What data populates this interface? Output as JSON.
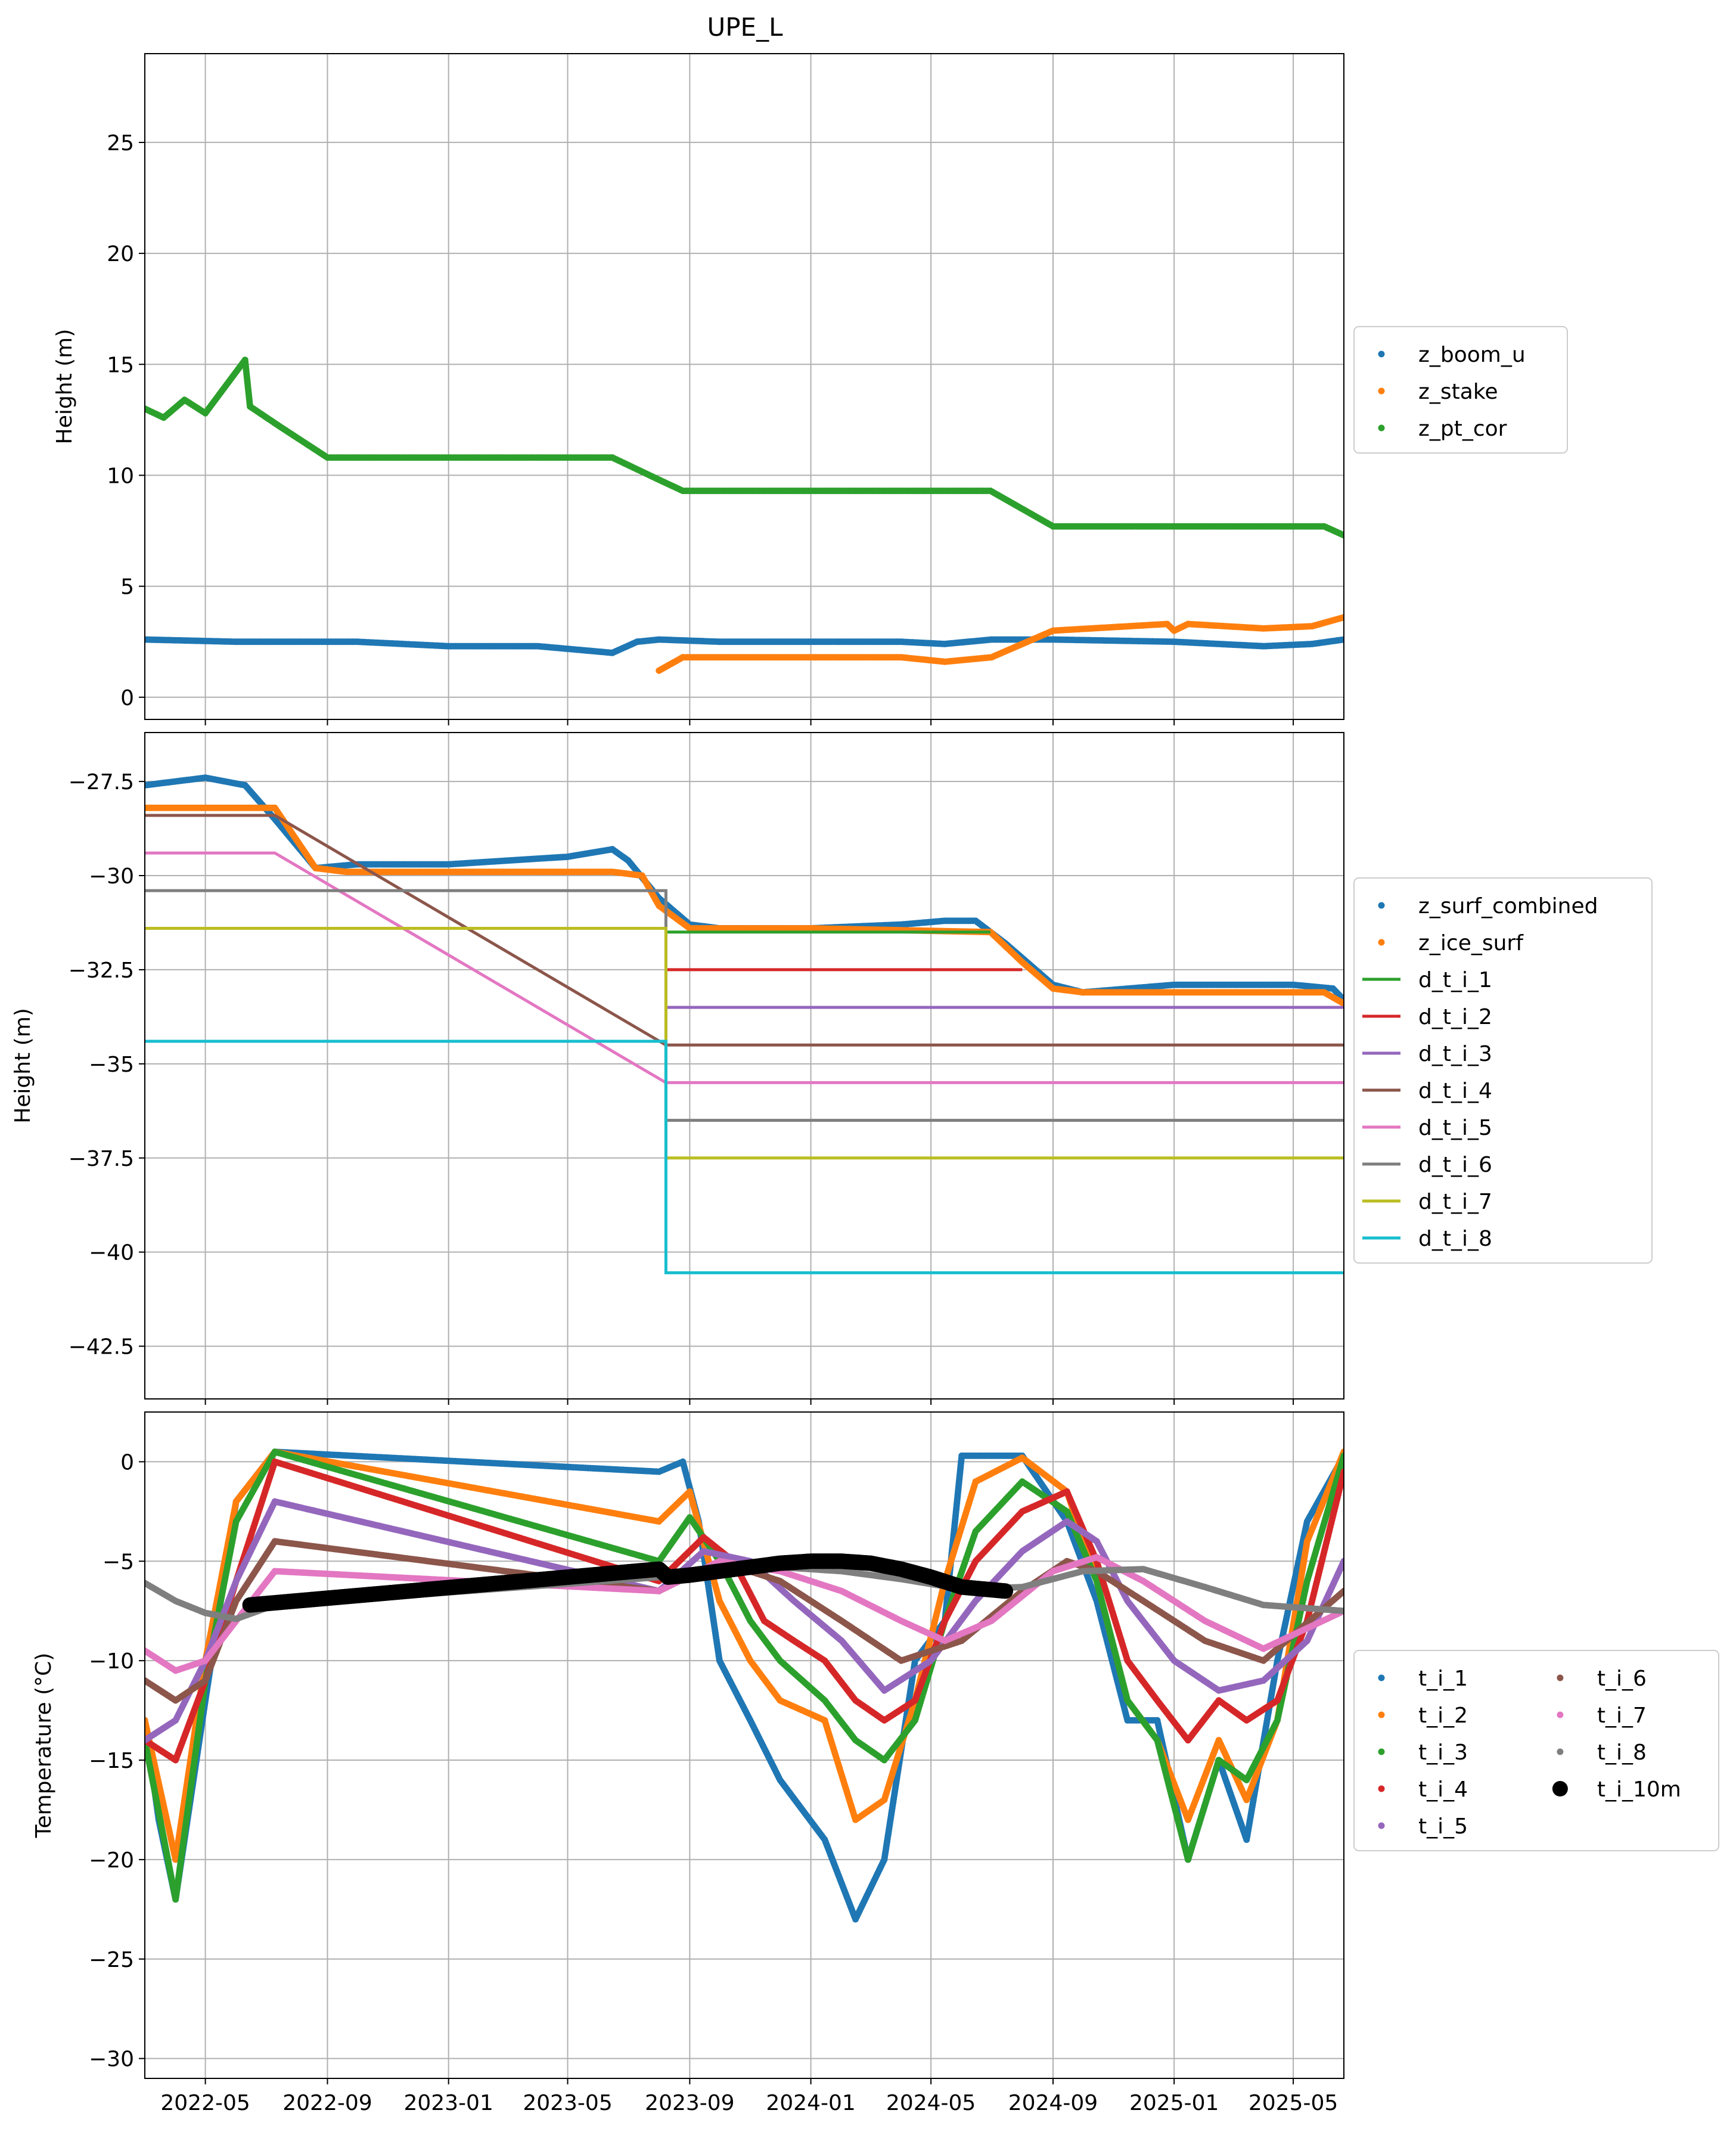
{
  "figure": {
    "title": "UPE_L",
    "x_ticks": [
      "2022-05",
      "2022-09",
      "2023-01",
      "2023-05",
      "2023-09",
      "2024-01",
      "2024-05",
      "2024-09",
      "2025-01",
      "2025-05"
    ],
    "x_range": [
      "2022-03-01",
      "2025-06-21"
    ]
  },
  "chart_data": [
    {
      "type": "scatter",
      "title": "UPE_L",
      "xlabel": "",
      "ylabel": "Height (m)",
      "ylim": [
        -1,
        29
      ],
      "yticks": [
        0,
        5,
        10,
        15,
        20,
        25
      ],
      "grid": true,
      "legend_position": "right, outside",
      "series": [
        {
          "name": "z_boom_u",
          "color": "#1f77b4",
          "x": [
            "2022-03-01",
            "2022-06-01",
            "2022-10-01",
            "2023-01-01",
            "2023-04-01",
            "2023-06-15",
            "2023-07-10",
            "2023-08-01",
            "2023-10-01",
            "2024-01-01",
            "2024-04-01",
            "2024-05-15",
            "2024-07-01",
            "2024-09-01",
            "2025-01-01",
            "2025-04-01",
            "2025-05-20",
            "2025-06-21"
          ],
          "y": [
            2.6,
            2.5,
            2.5,
            2.3,
            2.3,
            2.0,
            2.5,
            2.6,
            2.5,
            2.5,
            2.5,
            2.4,
            2.6,
            2.6,
            2.5,
            2.3,
            2.4,
            2.6
          ]
        },
        {
          "name": "z_stake",
          "color": "#ff7f0e",
          "x": [
            "2023-08-01",
            "2023-08-25",
            "2023-10-01",
            "2024-01-01",
            "2024-04-01",
            "2024-05-15",
            "2024-07-01",
            "2024-09-01",
            "2024-12-25",
            "2025-01-01",
            "2025-01-15",
            "2025-04-01",
            "2025-05-20",
            "2025-06-21"
          ],
          "y": [
            1.2,
            1.8,
            1.8,
            1.8,
            1.8,
            1.6,
            1.8,
            3.0,
            3.3,
            3.0,
            3.3,
            3.1,
            3.2,
            3.6
          ]
        },
        {
          "name": "z_pt_cor",
          "color": "#2ca02c",
          "x": [
            "2022-03-01",
            "2022-03-20",
            "2022-04-10",
            "2022-05-01",
            "2022-06-10",
            "2022-06-15",
            "2022-07-15",
            "2022-09-01",
            "2022-10-15",
            "2023-01-01",
            "2023-05-01",
            "2023-06-15",
            "2023-08-01",
            "2023-08-25",
            "2023-10-01",
            "2024-01-01",
            "2024-06-30",
            "2024-09-01",
            "2024-10-01",
            "2025-01-01",
            "2025-06-01",
            "2025-06-21"
          ],
          "y": [
            13.0,
            12.6,
            13.4,
            12.8,
            15.2,
            13.1,
            12.2,
            10.8,
            10.8,
            10.8,
            10.8,
            10.8,
            9.8,
            9.3,
            9.3,
            9.3,
            9.3,
            7.7,
            7.7,
            7.7,
            7.7,
            7.3
          ]
        }
      ]
    },
    {
      "type": "line",
      "title": "",
      "xlabel": "",
      "ylabel": "Height (m)",
      "ylim": [
        -43.9,
        -26.2
      ],
      "yticks": [
        -27.5,
        -30.0,
        -32.5,
        -35.0,
        -37.5,
        -40.0,
        -42.5
      ],
      "grid": true,
      "legend_position": "right, outside",
      "series": [
        {
          "name": "z_surf_combined",
          "mode": "points",
          "color": "#1f77b4",
          "x": [
            "2022-03-01",
            "2022-05-01",
            "2022-06-10",
            "2022-07-10",
            "2022-08-20",
            "2022-10-01",
            "2023-01-01",
            "2023-05-01",
            "2023-06-15",
            "2023-07-01",
            "2023-08-01",
            "2023-09-01",
            "2023-10-01",
            "2024-01-01",
            "2024-04-01",
            "2024-05-15",
            "2024-06-15",
            "2024-07-15",
            "2024-09-01",
            "2024-10-01",
            "2025-01-01",
            "2025-05-01",
            "2025-06-10",
            "2025-06-21"
          ],
          "y": [
            -27.6,
            -27.4,
            -27.6,
            -28.5,
            -29.8,
            -29.7,
            -29.7,
            -29.5,
            -29.3,
            -29.6,
            -30.6,
            -31.3,
            -31.4,
            -31.4,
            -31.3,
            -31.2,
            -31.2,
            -31.8,
            -32.9,
            -33.1,
            -32.9,
            -32.9,
            -33.0,
            -33.3
          ]
        },
        {
          "name": "z_ice_surf",
          "mode": "points",
          "color": "#ff7f0e",
          "x": [
            "2022-03-01",
            "2022-07-10",
            "2022-08-20",
            "2022-09-20",
            "2023-01-01",
            "2023-06-15",
            "2023-07-15",
            "2023-08-01",
            "2023-09-01",
            "2024-01-01",
            "2024-06-30",
            "2024-08-01",
            "2024-09-01",
            "2024-10-01",
            "2025-01-01",
            "2025-06-01",
            "2025-06-21"
          ],
          "y": [
            -28.2,
            -28.2,
            -29.8,
            -29.9,
            -29.9,
            -29.9,
            -30.0,
            -30.8,
            -31.4,
            -31.4,
            -31.5,
            -32.3,
            -33.0,
            -33.1,
            -33.1,
            -33.1,
            -33.4
          ]
        },
        {
          "name": "d_t_i_1",
          "mode": "line",
          "color": "#2ca02c",
          "x": [
            "2023-08-08",
            "2024-06-30"
          ],
          "y": [
            -31.5,
            -31.5
          ]
        },
        {
          "name": "d_t_i_2",
          "mode": "line",
          "color": "#d62728",
          "x": [
            "2023-08-08",
            "2024-08-01"
          ],
          "y": [
            -32.5,
            -32.5
          ]
        },
        {
          "name": "d_t_i_3",
          "mode": "line",
          "color": "#9467bd",
          "x": [
            "2023-08-08",
            "2025-06-21"
          ],
          "y": [
            -33.5,
            -33.5
          ]
        },
        {
          "name": "d_t_i_4",
          "mode": "line",
          "color": "#8c564b",
          "x": [
            "2022-03-01",
            "2022-07-10",
            "2023-08-08",
            "2025-06-21"
          ],
          "y": [
            -28.4,
            -28.4,
            -34.5,
            -34.5
          ]
        },
        {
          "name": "d_t_i_5",
          "mode": "line",
          "color": "#e377c2",
          "x": [
            "2022-03-01",
            "2022-07-10",
            "2023-08-08",
            "2025-06-21"
          ],
          "y": [
            -29.4,
            -29.4,
            -35.5,
            -35.5
          ]
        },
        {
          "name": "d_t_i_6",
          "mode": "line",
          "color": "#7f7f7f",
          "x": [
            "2022-03-01",
            "2023-08-08",
            "2023-08-08",
            "2025-06-21"
          ],
          "y": [
            -30.4,
            -30.4,
            -36.5,
            -36.5
          ]
        },
        {
          "name": "d_t_i_7",
          "mode": "line",
          "color": "#bcbd22",
          "x": [
            "2022-03-01",
            "2023-08-08",
            "2023-08-08",
            "2025-06-21"
          ],
          "y": [
            -31.4,
            -31.4,
            -37.5,
            -37.5
          ]
        },
        {
          "name": "d_t_i_8",
          "mode": "line",
          "color": "#17becf",
          "x": [
            "2022-03-01",
            "2023-08-08",
            "2023-08-08",
            "2025-06-21"
          ],
          "y": [
            -34.4,
            -34.4,
            -40.55,
            -40.55
          ]
        }
      ]
    },
    {
      "type": "scatter",
      "title": "",
      "xlabel": "",
      "ylabel": "Temperature (°C)",
      "ylim": [
        -31,
        2.5
      ],
      "yticks": [
        0,
        -5,
        -10,
        -15,
        -20,
        -25,
        -30
      ],
      "grid": true,
      "legend_position": "right, outside, two columns",
      "series": [
        {
          "name": "t_i_1",
          "color": "#1f77b4",
          "x": [
            "2022-03-01",
            "2022-03-15",
            "2022-04-01",
            "2022-05-01",
            "2022-06-01",
            "2022-07-10",
            "2023-08-01",
            "2023-08-25",
            "2023-09-10",
            "2023-10-01",
            "2023-11-01",
            "2023-12-01",
            "2024-01-15",
            "2024-02-15",
            "2024-03-15",
            "2024-04-15",
            "2024-05-15",
            "2024-06-01",
            "2024-08-01",
            "2024-09-15",
            "2024-10-15",
            "2024-11-15",
            "2024-12-15",
            "2025-01-15",
            "2025-02-15",
            "2025-03-15",
            "2025-04-15",
            "2025-05-15",
            "2025-06-21"
          ],
          "y": [
            -13,
            -18,
            -22,
            -12,
            -2,
            0.5,
            -0.5,
            0,
            -3,
            -10,
            -13,
            -16,
            -19,
            -23,
            -20,
            -10,
            -8,
            0.3,
            0.3,
            -3,
            -7,
            -13,
            -13,
            -20,
            -15,
            -19,
            -10,
            -3,
            0.3
          ]
        },
        {
          "name": "t_i_2",
          "color": "#ff7f0e",
          "x": [
            "2022-03-01",
            "2022-04-01",
            "2022-05-01",
            "2022-06-01",
            "2022-07-10",
            "2023-08-01",
            "2023-09-01",
            "2023-10-01",
            "2023-11-01",
            "2023-12-01",
            "2024-01-15",
            "2024-02-15",
            "2024-03-15",
            "2024-04-15",
            "2024-05-15",
            "2024-06-15",
            "2024-08-01",
            "2024-09-15",
            "2024-10-15",
            "2024-11-15",
            "2024-12-15",
            "2025-01-15",
            "2025-02-15",
            "2025-03-15",
            "2025-04-15",
            "2025-05-15",
            "2025-06-21"
          ],
          "y": [
            -13,
            -20,
            -10,
            -2,
            0.5,
            -3,
            -1.5,
            -7,
            -10,
            -12,
            -13,
            -18,
            -17,
            -12,
            -6,
            -1,
            0.2,
            -1.5,
            -6,
            -12,
            -14,
            -18,
            -14,
            -17,
            -13,
            -4,
            0.5
          ]
        },
        {
          "name": "t_i_3",
          "color": "#2ca02c",
          "x": [
            "2022-03-01",
            "2022-04-01",
            "2022-05-01",
            "2022-06-01",
            "2022-07-10",
            "2023-08-01",
            "2023-09-01",
            "2023-10-01",
            "2023-11-01",
            "2023-12-01",
            "2024-01-15",
            "2024-02-15",
            "2024-03-15",
            "2024-04-15",
            "2024-05-15",
            "2024-06-15",
            "2024-08-01",
            "2024-09-15",
            "2024-10-15",
            "2024-11-15",
            "2024-12-15",
            "2025-01-15",
            "2025-02-15",
            "2025-03-15",
            "2025-04-15",
            "2025-05-15",
            "2025-06-21"
          ],
          "y": [
            -14,
            -22,
            -11,
            -3,
            0.5,
            -5,
            -2.8,
            -5,
            -8,
            -10,
            -12,
            -14,
            -15,
            -13,
            -8,
            -3.5,
            -1,
            -2.5,
            -6,
            -12,
            -14,
            -20,
            -15,
            -16,
            -13,
            -6,
            0.3
          ]
        },
        {
          "name": "t_i_4",
          "color": "#d62728",
          "x": [
            "2022-03-01",
            "2022-04-01",
            "2022-05-01",
            "2022-06-01",
            "2022-07-10",
            "2023-08-01",
            "2023-09-15",
            "2023-10-15",
            "2023-11-15",
            "2023-12-15",
            "2024-01-15",
            "2024-02-15",
            "2024-03-15",
            "2024-04-15",
            "2024-05-15",
            "2024-06-15",
            "2024-08-01",
            "2024-09-15",
            "2024-10-15",
            "2024-11-15",
            "2024-12-15",
            "2025-01-15",
            "2025-02-15",
            "2025-03-15",
            "2025-04-15",
            "2025-05-15",
            "2025-06-21"
          ],
          "y": [
            -14,
            -15,
            -11,
            -6,
            0,
            -6,
            -3.8,
            -5,
            -8,
            -9,
            -10,
            -12,
            -13,
            -12,
            -8,
            -5,
            -2.5,
            -1.5,
            -5,
            -10,
            -12,
            -14,
            -12,
            -13,
            -12,
            -8,
            -0.5
          ]
        },
        {
          "name": "t_i_5",
          "color": "#9467bd",
          "x": [
            "2022-03-01",
            "2022-04-01",
            "2022-05-01",
            "2022-06-01",
            "2022-07-10",
            "2023-08-01",
            "2023-09-15",
            "2023-11-01",
            "2023-12-15",
            "2024-02-01",
            "2024-03-15",
            "2024-05-01",
            "2024-06-15",
            "2024-08-01",
            "2024-09-15",
            "2024-10-15",
            "2024-11-15",
            "2025-01-01",
            "2025-02-15",
            "2025-04-01",
            "2025-05-15",
            "2025-06-21"
          ],
          "y": [
            -14,
            -13,
            -10,
            -6,
            -2,
            -6.5,
            -4.5,
            -5,
            -7,
            -9,
            -11.5,
            -10,
            -7,
            -4.5,
            -3,
            -4,
            -7,
            -10,
            -11.5,
            -11,
            -9,
            -5
          ]
        },
        {
          "name": "t_i_6",
          "color": "#8c564b",
          "x": [
            "2022-03-01",
            "2022-04-01",
            "2022-05-01",
            "2022-06-01",
            "2022-07-10",
            "2023-08-01",
            "2023-10-01",
            "2023-12-01",
            "2024-02-01",
            "2024-04-01",
            "2024-06-01",
            "2024-08-01",
            "2024-09-15",
            "2024-10-15",
            "2024-12-01",
            "2025-02-01",
            "2025-04-01",
            "2025-06-21"
          ],
          "y": [
            -11,
            -12,
            -11,
            -7,
            -4,
            -6.5,
            -5,
            -6,
            -8,
            -10,
            -9,
            -6.5,
            -5,
            -5.5,
            -7,
            -9,
            -10,
            -6.5
          ]
        },
        {
          "name": "t_i_7",
          "color": "#e377c2",
          "x": [
            "2022-03-01",
            "2022-04-01",
            "2022-05-01",
            "2022-06-01",
            "2022-07-10",
            "2023-08-01",
            "2023-10-01",
            "2023-12-01",
            "2024-02-01",
            "2024-04-01",
            "2024-05-15",
            "2024-07-01",
            "2024-09-01",
            "2024-10-15",
            "2024-12-01",
            "2025-02-01",
            "2025-04-01",
            "2025-06-21"
          ],
          "y": [
            -9.5,
            -10.5,
            -10,
            -8,
            -5.5,
            -6.5,
            -5,
            -5.5,
            -6.5,
            -8,
            -9,
            -8,
            -5.5,
            -4.8,
            -6,
            -8,
            -9.4,
            -7.5
          ]
        },
        {
          "name": "t_i_8",
          "color": "#7f7f7f",
          "x": [
            "2022-03-01",
            "2022-04-01",
            "2022-05-01",
            "2022-06-01",
            "2022-07-10",
            "2023-08-01",
            "2023-10-01",
            "2023-12-01",
            "2024-02-01",
            "2024-04-01",
            "2024-06-01",
            "2024-08-01",
            "2024-10-01",
            "2024-12-01",
            "2025-02-01",
            "2025-04-01",
            "2025-06-21"
          ],
          "y": [
            -6.1,
            -7,
            -7.6,
            -7.9,
            -7.2,
            -5.8,
            -5.5,
            -5.3,
            -5.5,
            -5.9,
            -6.4,
            -6.3,
            -5.5,
            -5.4,
            -6.3,
            -7.2,
            -7.5
          ]
        },
        {
          "name": "t_i_10m",
          "color": "#000000",
          "marker": "large",
          "x": [
            "2022-06-15",
            "2023-08-01",
            "2023-08-10",
            "2023-09-01",
            "2023-10-01",
            "2023-11-01",
            "2023-12-01",
            "2024-01-01",
            "2024-02-01",
            "2024-03-01",
            "2024-04-01",
            "2024-05-01",
            "2024-06-01",
            "2024-07-15"
          ],
          "y": [
            -7.2,
            -5.4,
            -5.8,
            -5.7,
            -5.5,
            -5.3,
            -5.1,
            -5.0,
            -5.0,
            -5.1,
            -5.4,
            -5.8,
            -6.3,
            -6.5
          ]
        }
      ]
    }
  ]
}
